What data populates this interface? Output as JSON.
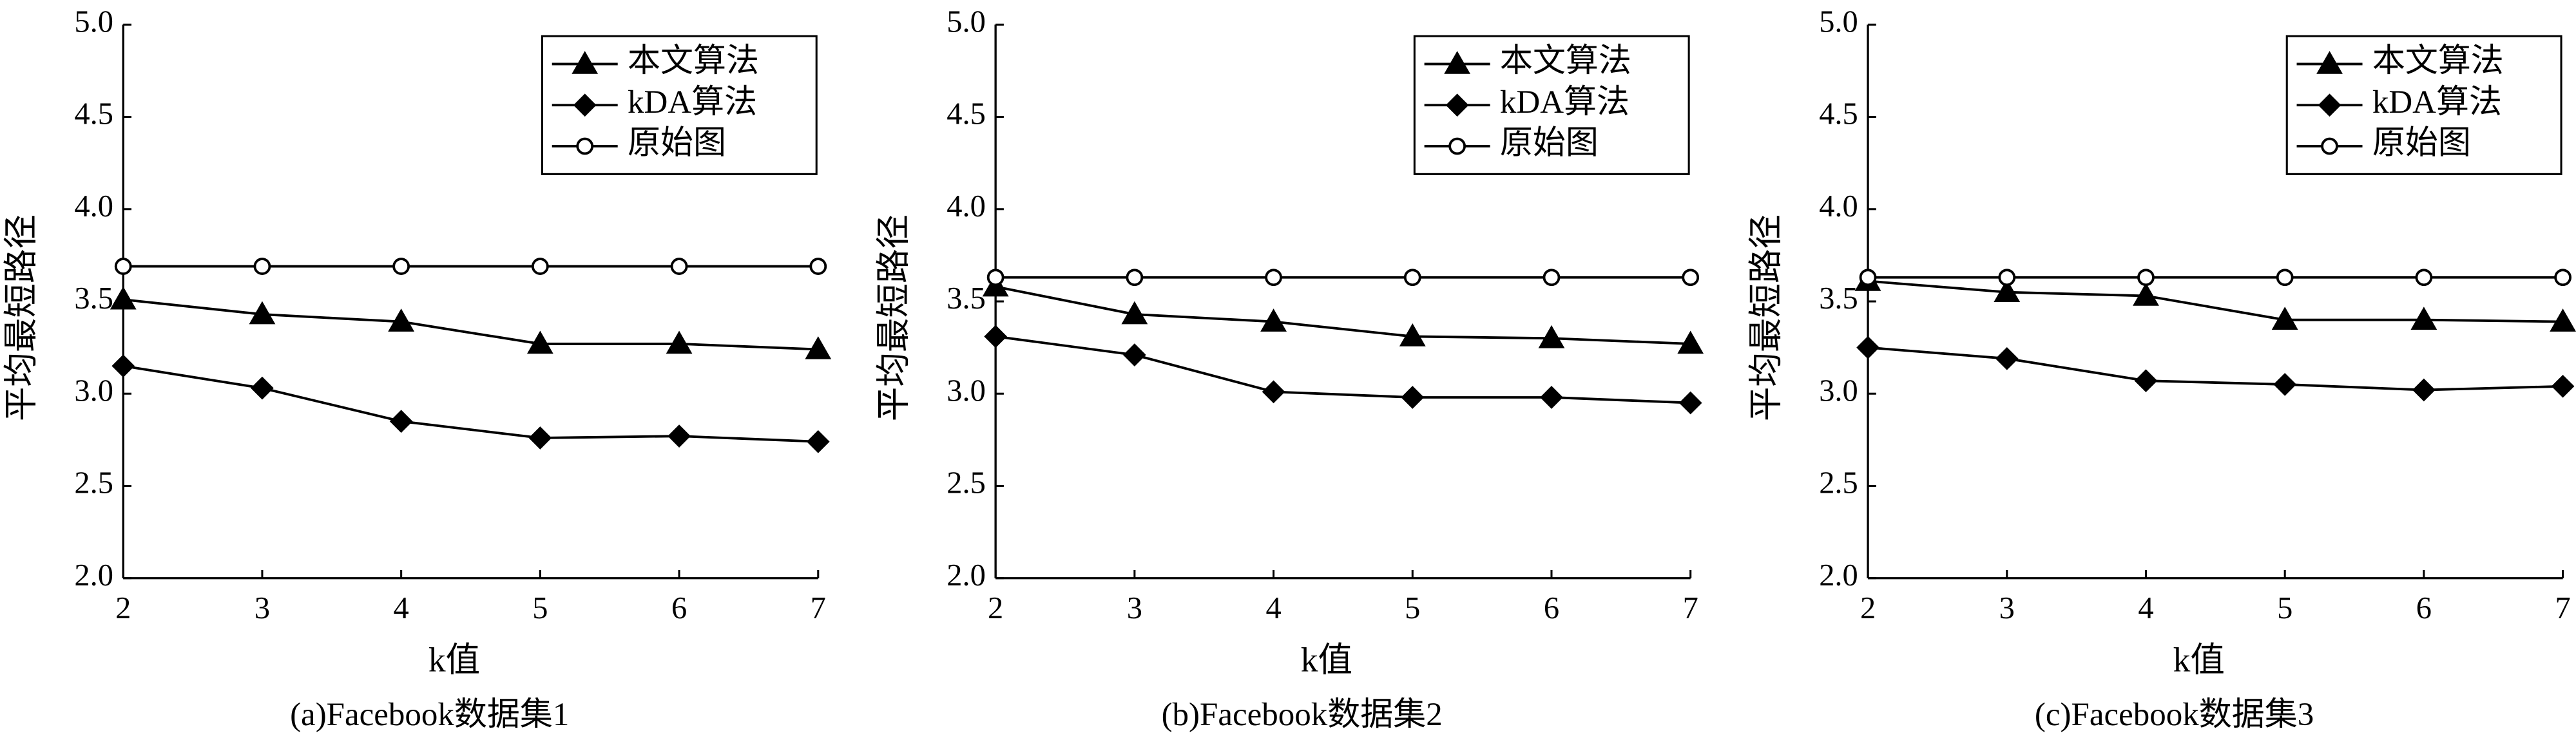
{
  "chart_data": [
    {
      "type": "line",
      "title": "(a)Facebook数据集1",
      "xlabel": "k值",
      "ylabel": "平均最短路径",
      "x": [
        2,
        3,
        4,
        5,
        6,
        7
      ],
      "xlim": [
        2,
        7
      ],
      "xticks": [
        2,
        3,
        4,
        5,
        6,
        7
      ],
      "ylim": [
        2,
        5
      ],
      "yticks": [
        {
          "value": 2,
          "label": "2.0"
        },
        2.5,
        {
          "value": 3,
          "label": "3.0"
        },
        3.5,
        {
          "value": 4,
          "label": "4.0"
        },
        4.5,
        {
          "value": 5,
          "label": "5.0"
        }
      ],
      "legend": "upper right",
      "series": [
        {
          "name": "本文算法",
          "color": "#000000",
          "marker": "triangle",
          "values": [
            3.51,
            3.43,
            3.39,
            3.27,
            3.27,
            3.24
          ]
        },
        {
          "name": "kDA算法",
          "color": "#000000",
          "marker": "diamond",
          "values": [
            3.15,
            3.03,
            2.85,
            2.76,
            2.77,
            2.74
          ]
        },
        {
          "name": "原始图",
          "color": "#000000",
          "marker": "circle-open",
          "values": [
            3.69,
            3.69,
            3.69,
            3.69,
            3.69,
            3.69
          ]
        }
      ]
    },
    {
      "type": "line",
      "title": "(b)Facebook数据集2",
      "xlabel": "k值",
      "ylabel": "平均最短路径",
      "x": [
        2,
        3,
        4,
        5,
        6,
        7
      ],
      "xlim": [
        2,
        7
      ],
      "xticks": [
        2,
        3,
        4,
        5,
        6,
        7
      ],
      "ylim": [
        2,
        5
      ],
      "yticks": [
        {
          "value": 2,
          "label": "2.0"
        },
        2.5,
        {
          "value": 3,
          "label": "3.0"
        },
        3.5,
        {
          "value": 4,
          "label": "4.0"
        },
        4.5,
        {
          "value": 5,
          "label": "5.0"
        }
      ],
      "legend": "upper right",
      "series": [
        {
          "name": "本文算法",
          "color": "#000000",
          "marker": "triangle",
          "values": [
            3.58,
            3.43,
            3.39,
            3.31,
            3.3,
            3.27
          ]
        },
        {
          "name": "kDA算法",
          "color": "#000000",
          "marker": "diamond",
          "values": [
            3.31,
            3.21,
            3.01,
            2.98,
            2.98,
            2.95
          ]
        },
        {
          "name": "原始图",
          "color": "#000000",
          "marker": "circle-open",
          "values": [
            3.63,
            3.63,
            3.63,
            3.63,
            3.63,
            3.63
          ]
        }
      ]
    },
    {
      "type": "line",
      "title": "(c)Facebook数据集3",
      "xlabel": "k值",
      "ylabel": "平均最短路径",
      "x": [
        2,
        3,
        4,
        5,
        6,
        7
      ],
      "xlim": [
        2,
        7
      ],
      "xticks": [
        2,
        3,
        4,
        5,
        6,
        7
      ],
      "ylim": [
        2,
        5
      ],
      "yticks": [
        {
          "value": 2,
          "label": "2.0"
        },
        2.5,
        {
          "value": 3,
          "label": "3.0"
        },
        3.5,
        {
          "value": 4,
          "label": "4.0"
        },
        4.5,
        {
          "value": 5,
          "label": "5.0"
        }
      ],
      "legend": "upper right",
      "series": [
        {
          "name": "本文算法",
          "color": "#000000",
          "marker": "triangle",
          "values": [
            3.61,
            3.55,
            3.53,
            3.4,
            3.4,
            3.39
          ]
        },
        {
          "name": "kDA算法",
          "color": "#000000",
          "marker": "diamond",
          "values": [
            3.25,
            3.19,
            3.07,
            3.05,
            3.02,
            3.04
          ]
        },
        {
          "name": "原始图",
          "color": "#000000",
          "marker": "circle-open",
          "values": [
            3.63,
            3.63,
            3.63,
            3.63,
            3.63,
            3.63
          ]
        }
      ]
    }
  ]
}
